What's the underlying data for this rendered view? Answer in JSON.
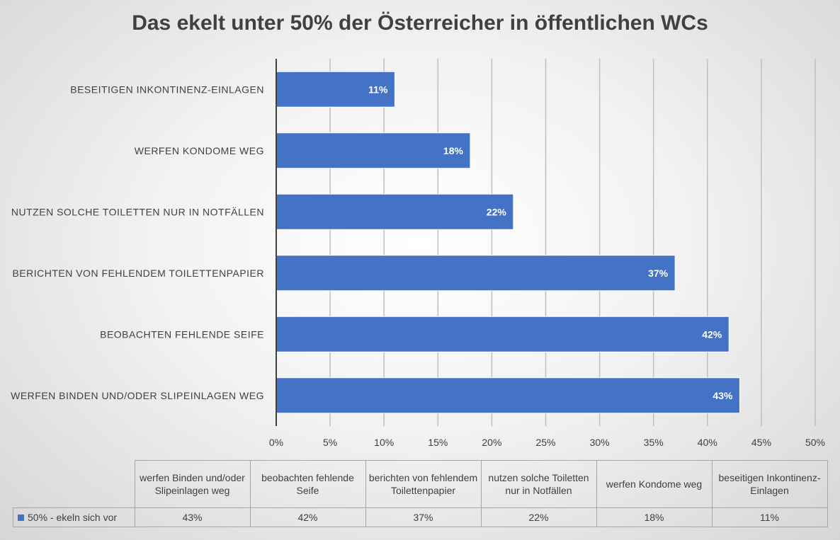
{
  "chart_data": {
    "type": "bar",
    "orientation": "horizontal",
    "title": "Das ekelt unter 50% der Österreicher in öffentlichen WCs",
    "categories": [
      "werfen Binden und/oder Slipeinlagen weg",
      "beobachten fehlende Seife",
      "berichten von fehlendem Toilettenpapier",
      "nutzen solche Toiletten nur in Notfällen",
      "werfen Kondome weg",
      "beseitigen Inkontinenz-Einlagen"
    ],
    "axis_categories": [
      "WERFEN BINDEN UND/ODER SLIPEINLAGEN WEG",
      "BEOBACHTEN FEHLENDE SEIFE",
      "BERICHTEN VON FEHLENDEM TOILETTENPAPIER",
      "NUTZEN SOLCHE TOILETTEN NUR IN NOTFÄLLEN",
      "WERFEN KONDOME WEG",
      "BESEITIGEN INKONTINENZ-EINLAGEN"
    ],
    "series": [
      {
        "name": "50% - ekeln sich vor",
        "values": [
          43,
          42,
          37,
          22,
          18,
          11
        ],
        "color": "#4472c4"
      }
    ],
    "data_labels": [
      "43%",
      "42%",
      "37%",
      "22%",
      "18%",
      "11%"
    ],
    "xlim": [
      0,
      50
    ],
    "xticks": [
      "0%",
      "5%",
      "10%",
      "15%",
      "20%",
      "25%",
      "30%",
      "35%",
      "40%",
      "45%",
      "50%"
    ],
    "grid": true,
    "legend": "data-table"
  },
  "table": {
    "headers": [
      "werfen Binden und/oder Slipeinlagen weg",
      "beobachten fehlende Seife",
      "berichten von fehlendem Toilettenpapier",
      "nutzen solche Toiletten nur in Notfällen",
      "werfen Kondome weg",
      "beseitigen Inkontinenz-Einlagen"
    ],
    "series_label": "50% - ekeln sich vor",
    "values": [
      "43%",
      "42%",
      "37%",
      "22%",
      "18%",
      "11%"
    ]
  }
}
